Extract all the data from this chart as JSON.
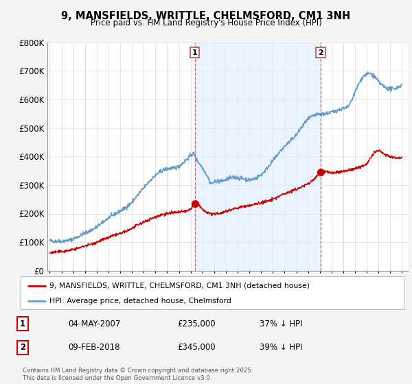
{
  "title": "9, MANSFIELDS, WRITTLE, CHELMSFORD, CM1 3NH",
  "subtitle": "Price paid vs. HM Land Registry's House Price Index (HPI)",
  "ylim": [
    0,
    800000
  ],
  "yticks": [
    0,
    100000,
    200000,
    300000,
    400000,
    500000,
    600000,
    700000,
    800000
  ],
  "ytick_labels": [
    "£0",
    "£100K",
    "£200K",
    "£300K",
    "£400K",
    "£500K",
    "£600K",
    "£700K",
    "£800K"
  ],
  "xlim_start": 1994.8,
  "xlim_end": 2025.5,
  "background_color": "#f5f5f5",
  "plot_bg_color": "#ffffff",
  "grid_color": "#dddddd",
  "hpi_color": "#6699cc",
  "hpi_fill_color": "#ddeeff",
  "price_color": "#cc0000",
  "marker1_x": 2007.35,
  "marker1_price": 235000,
  "marker2_x": 2018.08,
  "marker2_price": 345000,
  "legend_entries": [
    "9, MANSFIELDS, WRITTLE, CHELMSFORD, CM1 3NH (detached house)",
    "HPI: Average price, detached house, Chelmsford"
  ],
  "annotation1": [
    "1",
    "04-MAY-2007",
    "£235,000",
    "37% ↓ HPI"
  ],
  "annotation2": [
    "2",
    "09-FEB-2018",
    "£345,000",
    "39% ↓ HPI"
  ],
  "footer": "Contains HM Land Registry data © Crown copyright and database right 2025.\nThis data is licensed under the Open Government Licence v3.0.",
  "hpi_ctrl_x": [
    1995.0,
    1995.25,
    1995.5,
    1995.75,
    1996.0,
    1996.25,
    1996.5,
    1996.75,
    1997.0,
    1997.25,
    1997.5,
    1997.75,
    1998.0,
    1998.25,
    1998.5,
    1998.75,
    1999.0,
    1999.25,
    1999.5,
    1999.75,
    2000.0,
    2000.25,
    2000.5,
    2000.75,
    2001.0,
    2001.25,
    2001.5,
    2001.75,
    2002.0,
    2002.25,
    2002.5,
    2002.75,
    2003.0,
    2003.25,
    2003.5,
    2003.75,
    2004.0,
    2004.25,
    2004.5,
    2004.75,
    2005.0,
    2005.25,
    2005.5,
    2005.75,
    2006.0,
    2006.25,
    2006.5,
    2006.75,
    2007.0,
    2007.25,
    2007.5,
    2007.75,
    2008.0,
    2008.25,
    2008.5,
    2008.75,
    2009.0,
    2009.25,
    2009.5,
    2009.75,
    2010.0,
    2010.25,
    2010.5,
    2010.75,
    2011.0,
    2011.25,
    2011.5,
    2011.75,
    2012.0,
    2012.25,
    2012.5,
    2012.75,
    2013.0,
    2013.25,
    2013.5,
    2013.75,
    2014.0,
    2014.25,
    2014.5,
    2014.75,
    2015.0,
    2015.25,
    2015.5,
    2015.75,
    2016.0,
    2016.25,
    2016.5,
    2016.75,
    2017.0,
    2017.25,
    2017.5,
    2017.75,
    2018.0,
    2018.25,
    2018.5,
    2018.75,
    2019.0,
    2019.25,
    2019.5,
    2019.75,
    2020.0,
    2020.25,
    2020.5,
    2020.75,
    2021.0,
    2021.25,
    2021.5,
    2021.75,
    2022.0,
    2022.25,
    2022.5,
    2022.75,
    2023.0,
    2023.25,
    2023.5,
    2023.75,
    2024.0,
    2024.25,
    2024.5,
    2024.75,
    2025.0
  ],
  "hpi_ctrl_y": [
    105000,
    104000,
    103000,
    104000,
    103000,
    104000,
    106000,
    108000,
    112000,
    116000,
    121000,
    126000,
    131000,
    136000,
    141000,
    147000,
    153000,
    160000,
    168000,
    177000,
    185000,
    191000,
    197000,
    203000,
    209000,
    215000,
    222000,
    230000,
    240000,
    252000,
    265000,
    278000,
    290000,
    302000,
    314000,
    324000,
    333000,
    342000,
    349000,
    354000,
    357000,
    358000,
    359000,
    361000,
    366000,
    374000,
    383000,
    393000,
    403000,
    410000,
    390000,
    375000,
    360000,
    345000,
    325000,
    305000,
    310000,
    315000,
    313000,
    315000,
    318000,
    323000,
    326000,
    327000,
    325000,
    324000,
    322000,
    320000,
    318000,
    320000,
    323000,
    329000,
    336000,
    346000,
    359000,
    372000,
    385000,
    398000,
    412000,
    424000,
    435000,
    445000,
    455000,
    465000,
    476000,
    490000,
    505000,
    519000,
    530000,
    538000,
    543000,
    546000,
    547000,
    548000,
    550000,
    552000,
    555000,
    558000,
    562000,
    565000,
    568000,
    570000,
    580000,
    600000,
    625000,
    648000,
    668000,
    682000,
    688000,
    690000,
    685000,
    675000,
    662000,
    652000,
    644000,
    638000,
    636000,
    637000,
    640000,
    645000,
    650000
  ],
  "red_ctrl_x": [
    1995.0,
    1995.5,
    1996.0,
    1996.5,
    1997.0,
    1997.5,
    1998.0,
    1998.5,
    1999.0,
    1999.5,
    2000.0,
    2000.5,
    2001.0,
    2001.5,
    2002.0,
    2002.5,
    2003.0,
    2003.5,
    2004.0,
    2004.5,
    2005.0,
    2005.5,
    2006.0,
    2006.5,
    2007.0,
    2007.35,
    2007.6,
    2007.9,
    2008.3,
    2008.7,
    2009.0,
    2009.3,
    2009.6,
    2010.0,
    2010.5,
    2011.0,
    2011.5,
    2012.0,
    2012.5,
    2013.0,
    2013.5,
    2014.0,
    2014.5,
    2015.0,
    2015.5,
    2016.0,
    2016.5,
    2017.0,
    2017.5,
    2018.08,
    2018.4,
    2018.8,
    2019.0,
    2019.5,
    2020.0,
    2020.5,
    2021.0,
    2021.5,
    2022.0,
    2022.25,
    2022.5,
    2022.75,
    2023.0,
    2023.5,
    2024.0,
    2024.5,
    2025.0
  ],
  "red_ctrl_y": [
    62000,
    65000,
    67000,
    70000,
    74000,
    80000,
    87000,
    93000,
    100000,
    108000,
    116000,
    124000,
    130000,
    138000,
    148000,
    160000,
    170000,
    180000,
    188000,
    196000,
    200000,
    203000,
    205000,
    208000,
    215000,
    235000,
    235000,
    220000,
    205000,
    200000,
    198000,
    200000,
    203000,
    208000,
    215000,
    220000,
    225000,
    228000,
    233000,
    238000,
    243000,
    250000,
    260000,
    270000,
    278000,
    285000,
    295000,
    305000,
    320000,
    345000,
    348000,
    345000,
    342000,
    345000,
    348000,
    352000,
    358000,
    365000,
    375000,
    390000,
    405000,
    415000,
    420000,
    408000,
    400000,
    395000,
    398000
  ]
}
